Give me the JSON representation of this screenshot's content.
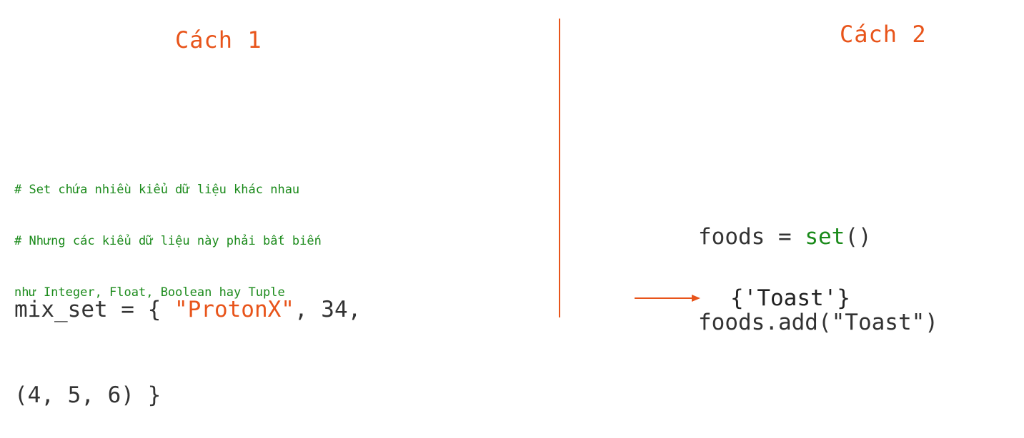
{
  "left": {
    "heading": "Cách 1",
    "comments": [
      "# Set chứa nhiều kiểu dữ liệu khác nhau",
      "# Nhưng các kiểu dữ liệu này phải bất biến",
      "như Integer, Float, Boolean hay Tuple"
    ],
    "code": {
      "line1_prefix": "mix_set = { ",
      "line1_string": "\"ProtonX\"",
      "line1_suffix": ", 34,",
      "line2": "(4, 5, 6) }"
    }
  },
  "right": {
    "heading": "Cách 2",
    "code": {
      "line1_prefix": "foods = ",
      "line1_builtin": "set",
      "line1_suffix": "()",
      "line2": "foods.add(\"Toast\")"
    },
    "result": "{'Toast'}"
  },
  "colors": {
    "accent": "#e8541a",
    "comment": "#1a8a1a",
    "code": "#333333"
  }
}
